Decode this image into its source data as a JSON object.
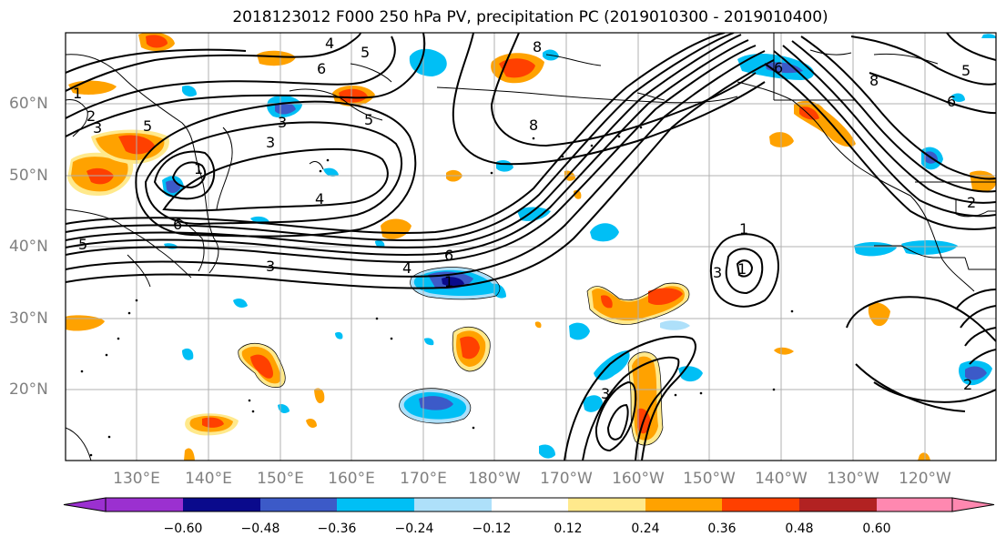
{
  "title": "2018123012 F000 250 hPa PV, precipitation PC (2019010300 - 2019010400)",
  "lat_labels": [
    "60°N",
    "50°N",
    "40°N",
    "30°N",
    "20°N"
  ],
  "lon_labels": [
    "130°E",
    "140°E",
    "150°E",
    "160°E",
    "170°E",
    "180°W",
    "170°W",
    "160°W",
    "150°W",
    "140°W",
    "130°W",
    "120°W"
  ],
  "colorbar": {
    "colors": [
      "#9b30d0",
      "#0a0a8c",
      "#3c5ac8",
      "#00bff5",
      "#aee0fa",
      "#ffffff",
      "#ffe98c",
      "#ffa200",
      "#ff4000",
      "#b22222",
      "#ff88b0"
    ],
    "ticks": [
      "−0.60",
      "−0.48",
      "−0.36",
      "−0.24",
      "−0.12",
      "0.12",
      "0.24",
      "0.36",
      "0.48",
      "0.60"
    ]
  },
  "contour_labels": [
    "4",
    "5",
    "6",
    "8",
    "2",
    "3",
    "5",
    "1",
    "3",
    "4",
    "6",
    "5",
    "3",
    "4",
    "6",
    "1",
    "8",
    "1",
    "3",
    "1",
    "3",
    "2",
    "8",
    "6",
    "5",
    "6",
    "2",
    "1",
    "5",
    "3"
  ]
}
